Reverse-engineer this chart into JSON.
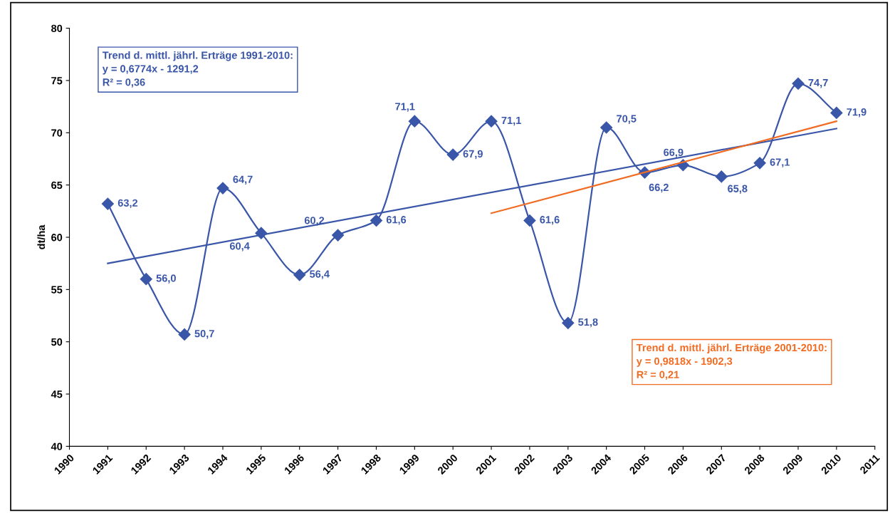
{
  "chart_data": {
    "type": "line",
    "ylabel": "dt/ha",
    "x": [
      1991,
      1992,
      1993,
      1994,
      1995,
      1996,
      1997,
      1998,
      1999,
      2000,
      2001,
      2002,
      2003,
      2004,
      2005,
      2006,
      2007,
      2008,
      2009,
      2010
    ],
    "series": [
      {
        "color": "#3a56a8",
        "marker": "diamond",
        "values": [
          63.2,
          56.0,
          50.7,
          64.7,
          60.4,
          56.4,
          60.2,
          61.6,
          71.1,
          67.9,
          71.1,
          61.6,
          51.8,
          70.5,
          66.2,
          66.9,
          65.8,
          67.1,
          74.7,
          71.9
        ],
        "value_labels": [
          "63,2",
          "56,0",
          "50,7",
          "64,7",
          "60,4",
          "56,4",
          "60,2",
          "61,6",
          "71,1",
          "67,9",
          "71,1",
          "61,6",
          "51,8",
          "70,5",
          "66,2",
          "66,9",
          "65,8",
          "67,1",
          "74,7",
          "71,9"
        ]
      },
      {
        "type": "line",
        "color": "#3a56a8",
        "x": [
          1991,
          2010
        ],
        "values": [
          57.5,
          70.4
        ]
      },
      {
        "type": "line",
        "color": "#f26b22",
        "x": [
          2001,
          2010
        ],
        "values": [
          62.3,
          71.1
        ]
      }
    ],
    "xlim": [
      1990,
      2011
    ],
    "xticks": [
      1990,
      1991,
      1992,
      1993,
      1994,
      1995,
      1996,
      1997,
      1998,
      1999,
      2000,
      2001,
      2002,
      2003,
      2004,
      2005,
      2006,
      2007,
      2008,
      2009,
      2010,
      2011
    ],
    "ylim": [
      40,
      80
    ],
    "yticks": [
      40,
      45,
      50,
      55,
      60,
      65,
      70,
      75,
      80
    ],
    "grid": false,
    "legend": false,
    "line_style": "solid",
    "annotations": [
      "Trend d. mittl. jährl. Erträge 1991-2010:\ny = 0,6774x - 1291,2\nR² = 0,36",
      "Trend d. mittl. jährl. Erträge 2001-2010:\ny = 0,9818x - 1902,3\nR² = 0,21"
    ]
  }
}
